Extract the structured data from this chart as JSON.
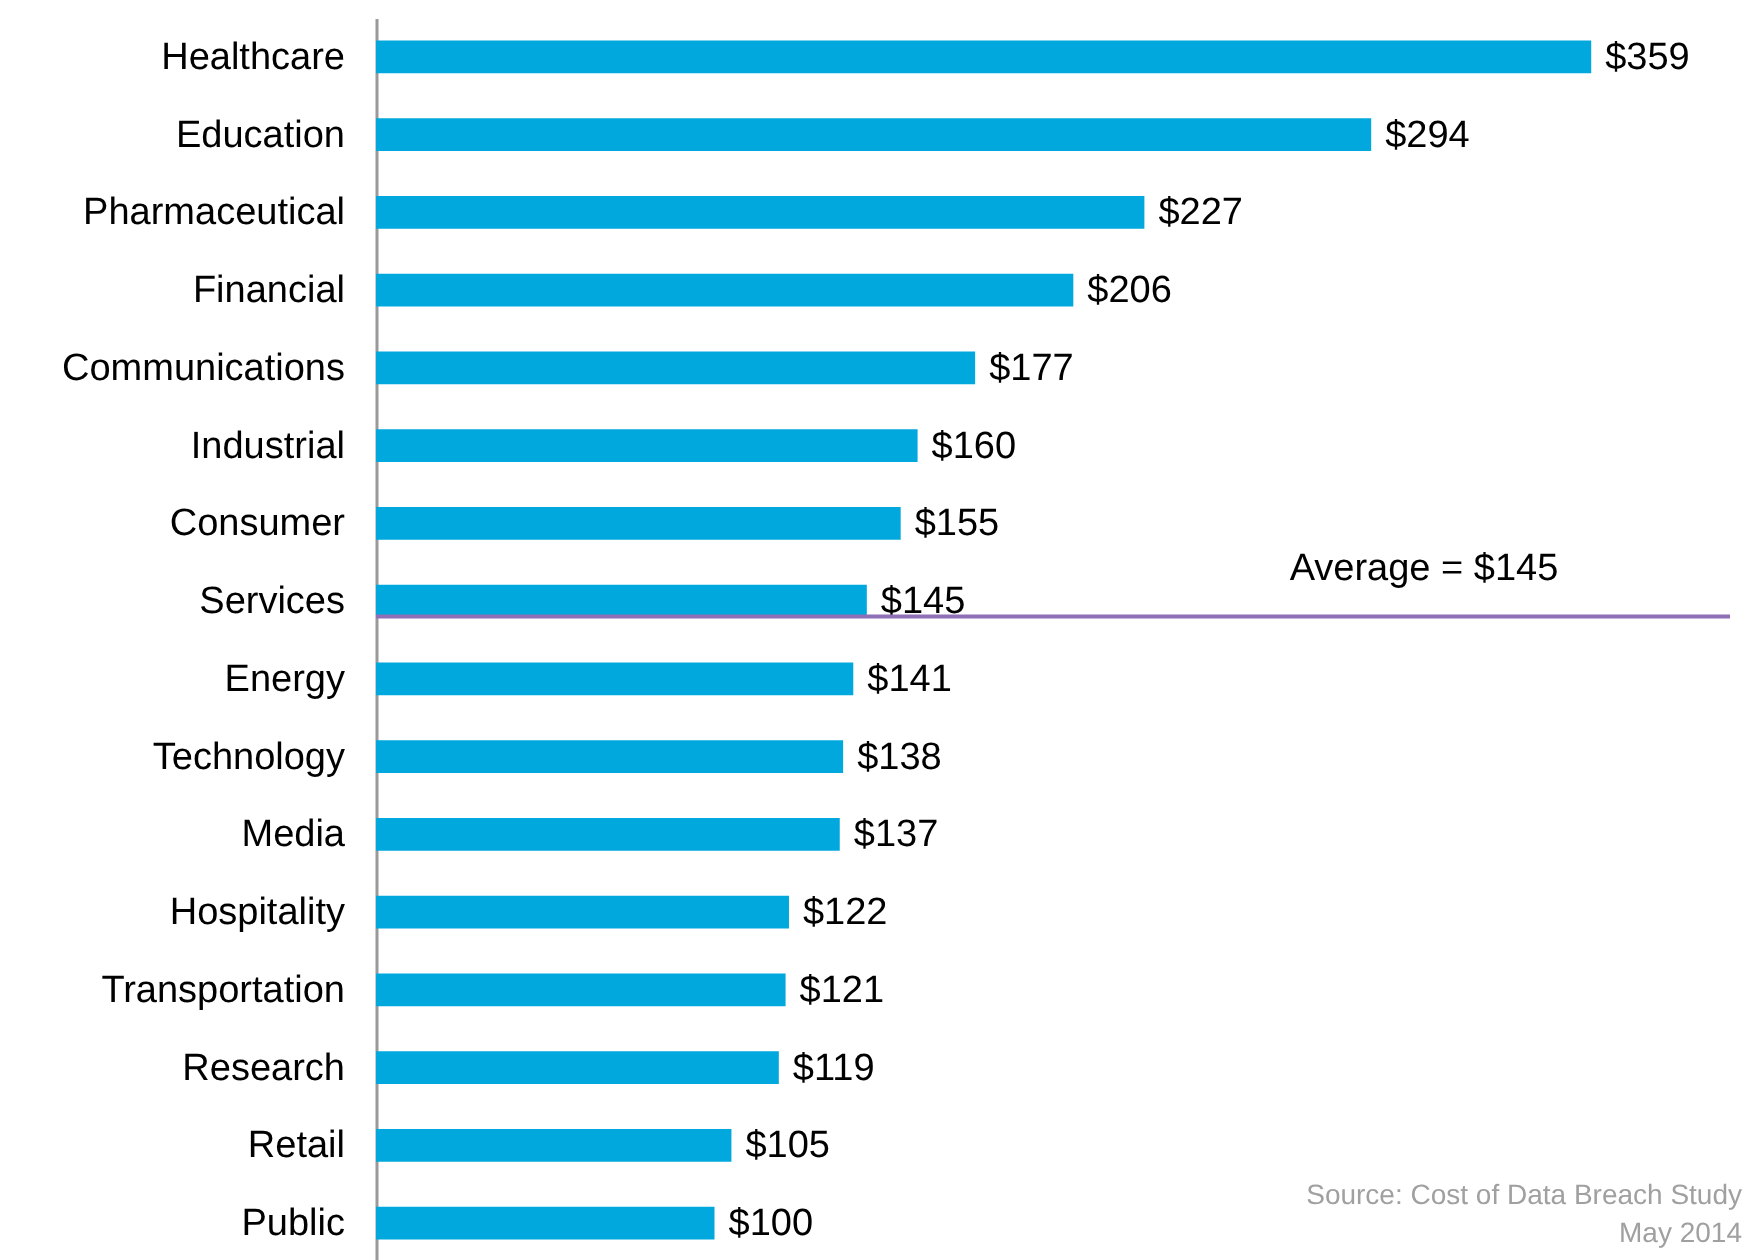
{
  "chart_data": {
    "type": "bar",
    "orientation": "horizontal",
    "categories": [
      "Healthcare",
      "Education",
      "Pharmaceutical",
      "Financial",
      "Communications",
      "Industrial",
      "Consumer",
      "Services",
      "Energy",
      "Technology",
      "Media",
      "Hospitality",
      "Transportation",
      "Research",
      "Retail",
      "Public"
    ],
    "values": [
      359,
      294,
      227,
      206,
      177,
      160,
      155,
      145,
      141,
      138,
      137,
      122,
      121,
      119,
      105,
      100
    ],
    "value_labels": [
      "$359",
      "$294",
      "$227",
      "$206",
      "$177",
      "$160",
      "$155",
      "$145",
      "$141",
      "$138",
      "$137",
      "$122",
      "$121",
      "$119",
      "$105",
      "$100"
    ],
    "color": "#00a8dd",
    "ref_lines": [
      {
        "axis": "y",
        "value": "Services",
        "label": "Average = $145",
        "color": "#8f6fb5"
      }
    ],
    "annotations": [
      "Source: Cost of Data Breach Study",
      "May 2014"
    ]
  }
}
